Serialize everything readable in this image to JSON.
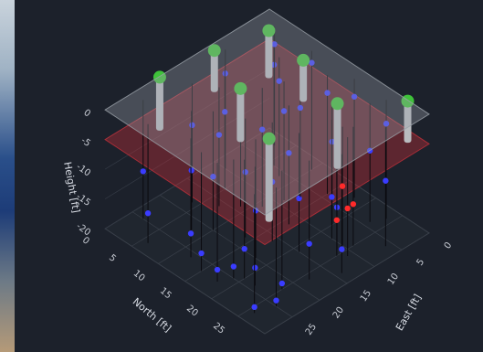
{
  "chart_data": {
    "type": "scatter3d",
    "xlabel": "North [ft]",
    "ylabel": "East [ft]",
    "zlabel": "Height [ft]",
    "xlim": [
      0,
      30
    ],
    "ylim": [
      0,
      30
    ],
    "zlim": [
      -20,
      0
    ],
    "xticks": [
      0,
      5,
      10,
      15,
      20,
      25
    ],
    "yticks": [
      0,
      5,
      10,
      15,
      20,
      25
    ],
    "zticks": [
      0,
      -5,
      -10,
      -15,
      -20
    ],
    "grid": true,
    "planes": [
      {
        "z": -5,
        "color": "#c0303a"
      },
      {
        "z": 0,
        "color": "#9aa0a8"
      }
    ],
    "series": [
      {
        "color": "#3a3cff",
        "x": [
          2,
          2,
          4,
          6,
          6,
          8,
          9,
          10,
          12,
          12,
          14,
          15,
          16,
          18,
          18,
          20,
          21,
          22,
          24,
          24,
          26,
          27,
          28,
          5,
          10,
          15,
          20,
          25,
          3,
          8,
          13,
          18,
          23,
          28,
          11,
          17,
          22,
          7,
          19,
          26
        ],
        "y": [
          25,
          10,
          18,
          28,
          5,
          22,
          14,
          2,
          26,
          9,
          18,
          4,
          12,
          27,
          20,
          8,
          15,
          24,
          2,
          11,
          18,
          25,
          6,
          13,
          20,
          27,
          24,
          22,
          2,
          6,
          7,
          2,
          4,
          14,
          12,
          16,
          10,
          16,
          25,
          28
        ],
        "z": [
          -12,
          -4,
          -7,
          -15,
          -3,
          -10,
          -6,
          -2,
          -16,
          -5,
          -9,
          -3,
          -8,
          -18,
          -12,
          -6,
          -11,
          -17,
          -4,
          -13,
          -14,
          -19,
          -9,
          -7,
          -11,
          -17,
          -15,
          -19,
          -3,
          -4,
          -5,
          -3,
          -8,
          -16,
          -7,
          -10,
          -13,
          -8,
          -18,
          -19
        ]
      },
      {
        "color": "#ff2a2a",
        "x": [
          24,
          25,
          26,
          25
        ],
        "y": [
          10,
          9,
          11,
          12
        ],
        "z": [
          -10,
          -13,
          -12,
          -14
        ]
      }
    ],
    "wells": {
      "color": "#b9bcc0",
      "top_color": "#3fc23a",
      "x": [
        4,
        1,
        2,
        11.5,
        27,
        10,
        21,
        20
      ],
      "y": [
        4,
        21,
        12,
        5,
        1,
        15,
        8,
        19.5
      ],
      "top": [
        1,
        1,
        1,
        1,
        1,
        1,
        1,
        1
      ],
      "bottom": [
        -7,
        -8,
        -6,
        -6,
        -6,
        -8,
        -10,
        -13
      ]
    }
  }
}
